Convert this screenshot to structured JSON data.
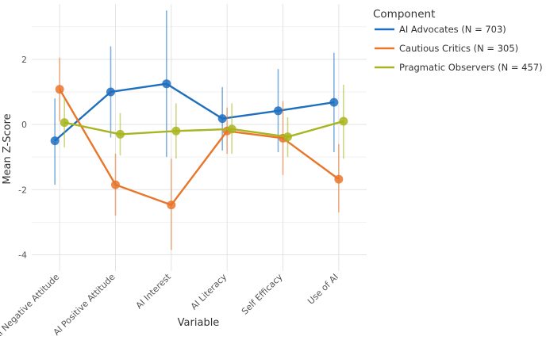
{
  "chart_data": {
    "type": "line",
    "title": "",
    "xlabel": "Variable",
    "ylabel": "Mean Z-Score",
    "categories": [
      "AI Negative Attitude",
      "AI Positive Attitude",
      "AI Interest",
      "AI Literacy",
      "Self Efficacy",
      "Use of AI"
    ],
    "ylim": [
      -4.5,
      3.7
    ],
    "yticks": [
      -4,
      -2,
      0,
      2
    ],
    "ytick_labels": [
      "-4",
      "-2",
      "0",
      "2"
    ],
    "grid": true,
    "legend": {
      "title": "Component",
      "placement": "top-right"
    },
    "series": [
      {
        "name": "AI Advocates (N = 703)",
        "color": "#1f6fbf",
        "values": [
          -0.5,
          1.0,
          1.25,
          0.18,
          0.42,
          0.68
        ],
        "err_low": [
          -1.85,
          -0.4,
          -1.0,
          -0.8,
          -0.85,
          -0.85
        ],
        "err_high": [
          0.8,
          2.4,
          3.5,
          1.15,
          1.7,
          2.2
        ]
      },
      {
        "name": "Cautious Critics (N = 305)",
        "color": "#e8762b",
        "values": [
          1.08,
          -1.85,
          -2.47,
          -0.2,
          -0.42,
          -1.68
        ],
        "err_low": [
          0.1,
          -2.8,
          -3.85,
          -0.9,
          -1.55,
          -2.7
        ],
        "err_high": [
          2.05,
          -0.9,
          -1.05,
          0.52,
          0.72,
          -0.6
        ]
      },
      {
        "name": "Pragmatic Observers (N = 457)",
        "color": "#a8b520",
        "values": [
          0.06,
          -0.3,
          -0.2,
          -0.14,
          -0.38,
          0.1
        ],
        "err_low": [
          -0.7,
          -0.95,
          -1.05,
          -0.9,
          -1.0,
          -1.05
        ],
        "err_high": [
          0.82,
          0.35,
          0.65,
          0.65,
          0.22,
          1.22
        ]
      }
    ]
  }
}
